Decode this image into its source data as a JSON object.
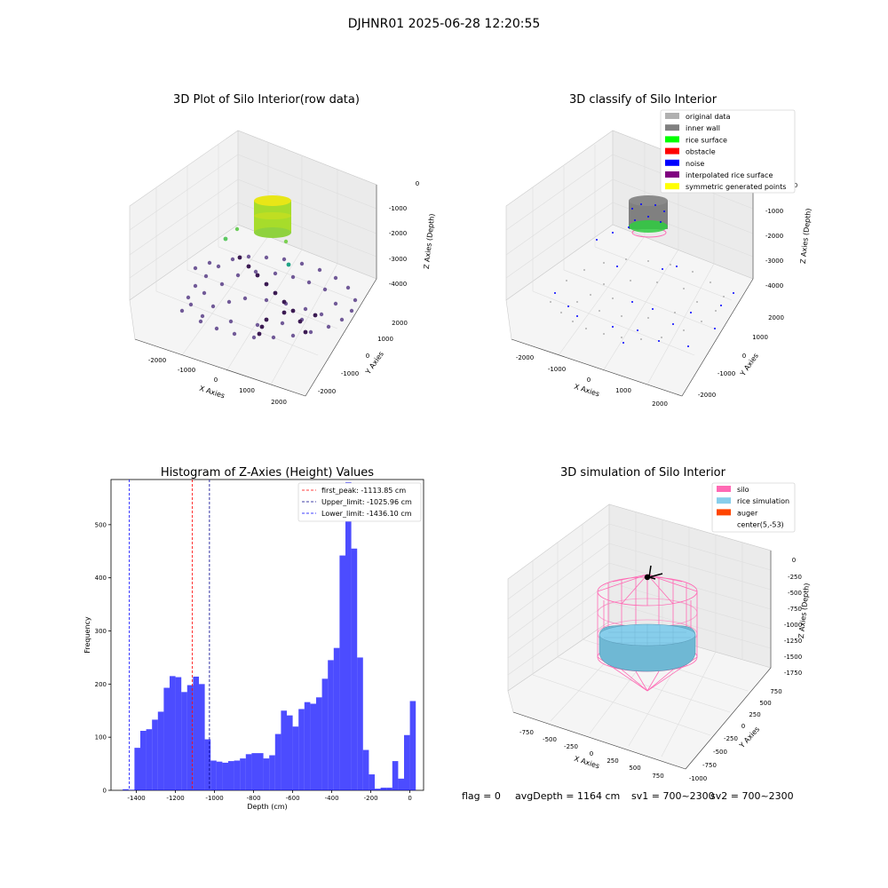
{
  "suptitle": "DJHNR01 2025-06-28 12:20:55",
  "status": {
    "flag": "flag = 0",
    "avg_depth": "avgDepth = 1164 cm",
    "sv1": "sv1 = 700~2300",
    "sv2": "sv2 = 700~2300"
  },
  "panels": {
    "raw": {
      "title": "3D Plot of Silo Interior(row data)",
      "xlabel": "X Axies",
      "ylabel": "Y Axies",
      "zlabel": "Z Axies (Depth)",
      "xticks": [
        "-2000",
        "-1000",
        "0",
        "1000",
        "2000"
      ],
      "yticks": [
        "-2000",
        "-1000",
        "0",
        "1000",
        "2000"
      ],
      "zticks": [
        "0",
        "-1000",
        "-2000",
        "-3000",
        "-4000"
      ]
    },
    "classify": {
      "title": "3D classify of Silo Interior",
      "xlabel": "X Axies",
      "ylabel": "Y Axies",
      "zlabel": "Z Axies (Depth)",
      "xticks": [
        "-2000",
        "-1000",
        "0",
        "1000",
        "2000"
      ],
      "yticks": [
        "-2000",
        "-1000",
        "0",
        "1000",
        "2000"
      ],
      "zticks": [
        "0",
        "-1000",
        "-2000",
        "-3000",
        "-4000"
      ],
      "legend": [
        {
          "label": "original data",
          "color": "#b0b0b0"
        },
        {
          "label": "inner wall",
          "color": "#808080"
        },
        {
          "label": "rice surface",
          "color": "#00ff00"
        },
        {
          "label": "obstacle",
          "color": "#ff0000"
        },
        {
          "label": "noise",
          "color": "#0000ff"
        },
        {
          "label": "interpolated rice surface",
          "color": "#800080"
        },
        {
          "label": "symmetric generated points",
          "color": "#ffff00"
        }
      ]
    },
    "simulation": {
      "title": "3D simulation of Silo Interior",
      "xlabel": "X Axies",
      "ylabel": "Y Axies",
      "zlabel": "Z Axies (Depth)",
      "xticks": [
        "-750",
        "-500",
        "-250",
        "0",
        "250",
        "500",
        "750"
      ],
      "yticks": [
        "-1000",
        "-750",
        "-500",
        "-250",
        "0",
        "250",
        "500",
        "750"
      ],
      "zticks": [
        "0",
        "-250",
        "-500",
        "-750",
        "-1000",
        "-1250",
        "-1500",
        "-1750"
      ],
      "legend": [
        {
          "label": "silo",
          "color": "#ff69b4"
        },
        {
          "label": "rice simulation",
          "color": "#87ceeb"
        },
        {
          "label": "auger",
          "color": "#ff4500"
        },
        {
          "label": "center(5,-53)",
          "color": "#ffffff"
        }
      ]
    }
  },
  "chart_data": {
    "type": "bar",
    "title": "Histogram of Z-Axies (Height) Values",
    "xlabel": "Depth (cm)",
    "ylabel": "Frequency",
    "xlim": [
      -1530,
      70
    ],
    "ylim": [
      0,
      585
    ],
    "xticks": [
      -1400,
      -1200,
      -1000,
      -800,
      -600,
      -400,
      -200,
      0
    ],
    "yticks": [
      0,
      100,
      200,
      300,
      400,
      500
    ],
    "bar_color": "#0000ff",
    "bin_start": -1470,
    "bin_width": 30,
    "values": [
      2,
      1,
      80,
      112,
      115,
      133,
      148,
      193,
      215,
      213,
      185,
      198,
      214,
      200,
      96,
      56,
      54,
      52,
      55,
      56,
      60,
      68,
      70,
      70,
      60,
      66,
      106,
      150,
      141,
      120,
      153,
      166,
      163,
      175,
      210,
      245,
      268,
      442,
      580,
      455,
      250,
      76,
      30,
      3,
      5,
      5,
      55,
      22,
      104,
      168
    ],
    "vlines": [
      {
        "label": "first_peak: -1113.85 cm",
        "x": -1113.85,
        "color": "#ff0000"
      },
      {
        "label": "Upper_limit: -1025.96 cm",
        "x": -1025.96,
        "color": "#00008b"
      },
      {
        "label": "Lower_limit: -1436.10 cm",
        "x": -1436.1,
        "color": "#0000ff"
      }
    ],
    "legend_position": "upper right"
  }
}
